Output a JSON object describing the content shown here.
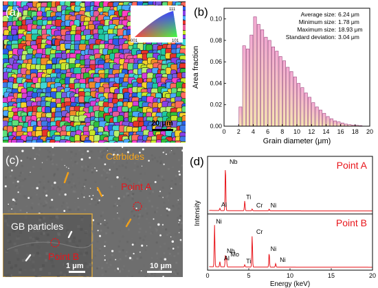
{
  "figure": {
    "panel_labels": [
      "(a)",
      "(b)",
      "(c)",
      "(d)"
    ]
  },
  "panel_a": {
    "scale_bar": "20 μm",
    "ipf_key_labels": [
      "111",
      "001",
      "101"
    ]
  },
  "panel_b": {
    "stats": [
      {
        "label": "Average size:",
        "value": "6.24 μm"
      },
      {
        "label": "Minimum size:",
        "value": "1.78 μm"
      },
      {
        "label": "Maximum size:",
        "value": "18.93 μm"
      },
      {
        "label": "Standard deviation:",
        "value": "3.04 μm"
      }
    ]
  },
  "panel_c": {
    "carbides_label": "Carbides",
    "point_a_label": "Point A",
    "inset_title": "GB particles",
    "point_b_label": "Point B",
    "inset_scale": "1 μm",
    "scale_bar": "10 μm"
  },
  "panel_d": {
    "top_point": "Point A",
    "bottom_point": "Point B",
    "peaks_a": [
      "Al",
      "Nb",
      "Ti",
      "Cr",
      "Ni"
    ],
    "peaks_b": [
      "Ni",
      "Nb",
      "Mo",
      "Al",
      "Ti",
      "Cr",
      "Ni",
      "Ni"
    ]
  },
  "colors": {
    "bar_fill_top": "#f4a9d4",
    "bar_fill_bottom": "#f6e7b2",
    "bar_stroke": "#9b4a7c",
    "spectrum": "#e8141a",
    "annotation": "#f0a019",
    "point_label": "#e8141a"
  },
  "chart_data": [
    {
      "type": "bar",
      "xlabel": "Grain diameter (μm)",
      "ylabel": "Area fraction",
      "xlim": [
        0,
        20
      ],
      "ylim": [
        0,
        0.11
      ],
      "xticks": [
        0,
        2,
        4,
        6,
        8,
        10,
        12,
        14,
        16,
        18,
        20
      ],
      "yticks": [
        0.0,
        0.02,
        0.04,
        0.06,
        0.08,
        0.1
      ],
      "ytick_labels": [
        "0.00",
        "0.02",
        "0.04",
        "0.06",
        "0.08",
        "0.10"
      ],
      "bin_width": 0.5,
      "x": [
        2.0,
        2.5,
        3.0,
        3.5,
        4.0,
        4.5,
        5.0,
        5.5,
        6.0,
        6.5,
        7.0,
        7.5,
        8.0,
        8.5,
        9.0,
        9.5,
        10.0,
        10.5,
        11.0,
        11.5,
        12.0,
        12.5,
        13.0,
        13.5,
        14.0,
        14.5,
        15.0,
        15.5,
        16.0,
        16.5,
        17.0,
        17.5,
        18.0,
        18.5
      ],
      "values": [
        0.018,
        0.075,
        0.072,
        0.085,
        0.102,
        0.095,
        0.09,
        0.083,
        0.08,
        0.074,
        0.07,
        0.065,
        0.061,
        0.055,
        0.051,
        0.046,
        0.04,
        0.036,
        0.031,
        0.027,
        0.022,
        0.018,
        0.015,
        0.012,
        0.009,
        0.007,
        0.005,
        0.004,
        0.003,
        0.002,
        0.0015,
        0.001,
        0.0008,
        0.0005
      ]
    },
    {
      "type": "line",
      "xlabel": "Energy (keV)",
      "ylabel": "Intensity",
      "xlim": [
        0,
        20
      ],
      "xticks": [
        0,
        5,
        10,
        15,
        20
      ],
      "series": [
        {
          "name": "Point A",
          "peaks": [
            {
              "element": "Al",
              "energy": 1.49,
              "height": 0.05
            },
            {
              "element": "Nb",
              "energy": 2.17,
              "height": 1.0
            },
            {
              "element": "Ti",
              "energy": 4.51,
              "height": 0.22
            },
            {
              "element": "Cr",
              "energy": 5.41,
              "height": 0.04
            },
            {
              "element": "Ni",
              "energy": 7.47,
              "height": 0.04
            }
          ]
        },
        {
          "name": "Point B",
          "peaks": [
            {
              "element": "Ni",
              "energy": 0.85,
              "height": 0.95
            },
            {
              "element": "Al",
              "energy": 1.49,
              "height": 0.12
            },
            {
              "element": "Nb",
              "energy": 2.17,
              "height": 0.28
            },
            {
              "element": "Mo",
              "energy": 2.29,
              "height": 0.2
            },
            {
              "element": "Ti",
              "energy": 4.51,
              "height": 0.05
            },
            {
              "element": "Cr",
              "energy": 5.41,
              "height": 0.72
            },
            {
              "element": "Ni",
              "energy": 7.47,
              "height": 0.33
            },
            {
              "element": "Ni",
              "energy": 8.26,
              "height": 0.08
            }
          ]
        }
      ]
    }
  ]
}
